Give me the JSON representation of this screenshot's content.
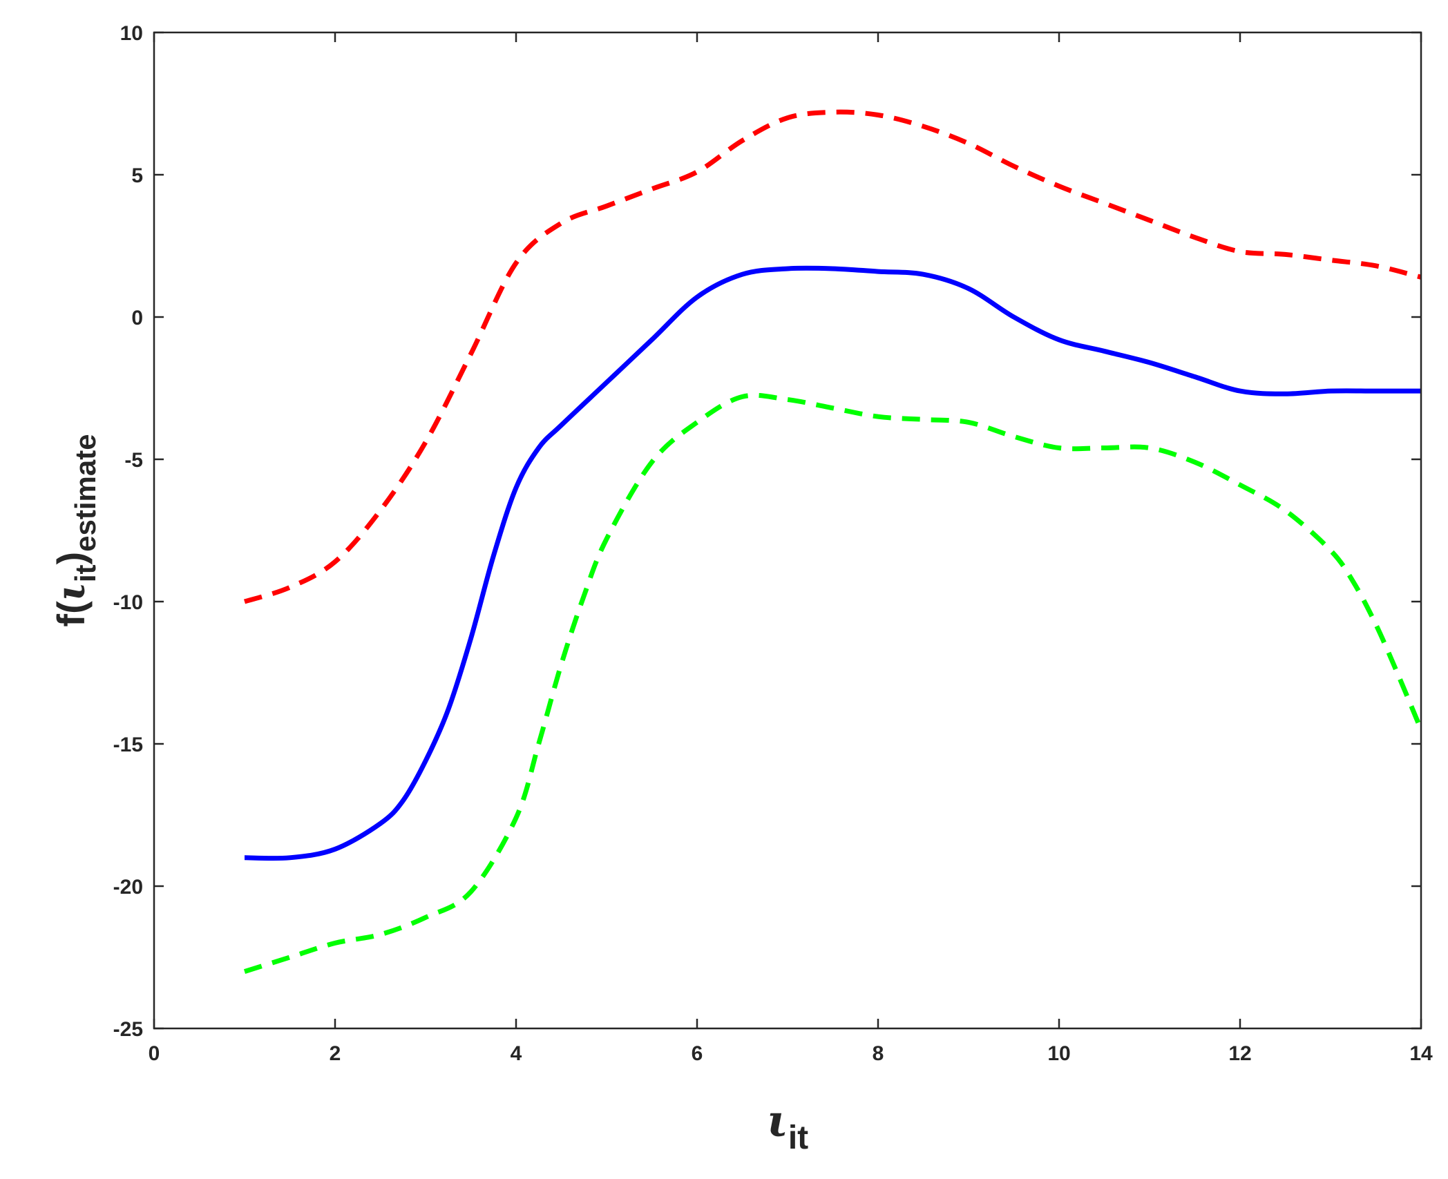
{
  "chart_data": {
    "type": "line",
    "xlim": [
      0,
      14
    ],
    "ylim": [
      -25,
      10
    ],
    "x_ticks": [
      0,
      2,
      4,
      6,
      8,
      10,
      12,
      14
    ],
    "y_ticks": [
      -25,
      -20,
      -15,
      -10,
      -5,
      0,
      5,
      10
    ],
    "x_tick_labels": [
      "0",
      "2",
      "4",
      "6",
      "8",
      "10",
      "12",
      "14"
    ],
    "y_tick_labels": [
      "-25",
      "-20",
      "-15",
      "-10",
      "-5",
      "0",
      "5",
      "10"
    ],
    "xlabel": {
      "symbol": "ι",
      "sub": "it"
    },
    "ylabel": {
      "prefix": "f(",
      "symbol": "ι",
      "sub1": "it",
      "close": ")",
      "sub2": "estimate"
    },
    "grid": false,
    "box": true,
    "series": [
      {
        "color": "#ff0000",
        "style": "dashed",
        "x": [
          1,
          1.5,
          2,
          2.5,
          3,
          3.5,
          4,
          4.5,
          5,
          5.5,
          6,
          6.5,
          7,
          7.5,
          8,
          8.5,
          9,
          9.5,
          10,
          10.5,
          11,
          11.5,
          12,
          12.5,
          13,
          13.5,
          14
        ],
        "y": [
          -10.0,
          -9.5,
          -8.6,
          -6.8,
          -4.4,
          -1.3,
          1.9,
          3.3,
          3.9,
          4.5,
          5.1,
          6.2,
          7.0,
          7.2,
          7.1,
          6.7,
          6.1,
          5.3,
          4.6,
          4.0,
          3.4,
          2.8,
          2.3,
          2.2,
          2.0,
          1.8,
          1.4
        ]
      },
      {
        "color": "#0000ff",
        "style": "solid",
        "x": [
          1,
          1.5,
          2,
          2.5,
          2.75,
          3,
          3.25,
          3.5,
          3.75,
          4,
          4.25,
          4.5,
          5,
          5.5,
          6,
          6.5,
          7,
          7.5,
          8,
          8.5,
          9,
          9.5,
          10,
          10.5,
          11,
          11.5,
          12,
          12.5,
          13,
          13.5,
          14
        ],
        "y": [
          -19.0,
          -19.0,
          -18.7,
          -17.8,
          -17.0,
          -15.6,
          -13.8,
          -11.3,
          -8.4,
          -6.0,
          -4.6,
          -3.8,
          -2.3,
          -0.8,
          0.7,
          1.5,
          1.7,
          1.7,
          1.6,
          1.5,
          1.0,
          0.0,
          -0.8,
          -1.2,
          -1.6,
          -2.1,
          -2.6,
          -2.7,
          -2.6,
          -2.6,
          -2.6
        ]
      },
      {
        "color": "#00ff00",
        "style": "dashed",
        "x": [
          1,
          1.5,
          2,
          2.5,
          3,
          3.5,
          4,
          4.25,
          4.5,
          4.75,
          5,
          5.5,
          6,
          6.5,
          7,
          7.5,
          8,
          8.5,
          9,
          9.5,
          10,
          10.5,
          11,
          11.5,
          12,
          12.5,
          13,
          13.25,
          13.5,
          13.75,
          14
        ],
        "y": [
          -23.0,
          -22.5,
          -22.0,
          -21.7,
          -21.1,
          -20.2,
          -17.6,
          -15.0,
          -12.2,
          -9.8,
          -7.8,
          -5.1,
          -3.7,
          -2.8,
          -2.9,
          -3.2,
          -3.5,
          -3.6,
          -3.7,
          -4.2,
          -4.6,
          -4.6,
          -4.6,
          -5.1,
          -5.9,
          -6.8,
          -8.2,
          -9.3,
          -10.8,
          -12.6,
          -14.5
        ]
      }
    ]
  }
}
